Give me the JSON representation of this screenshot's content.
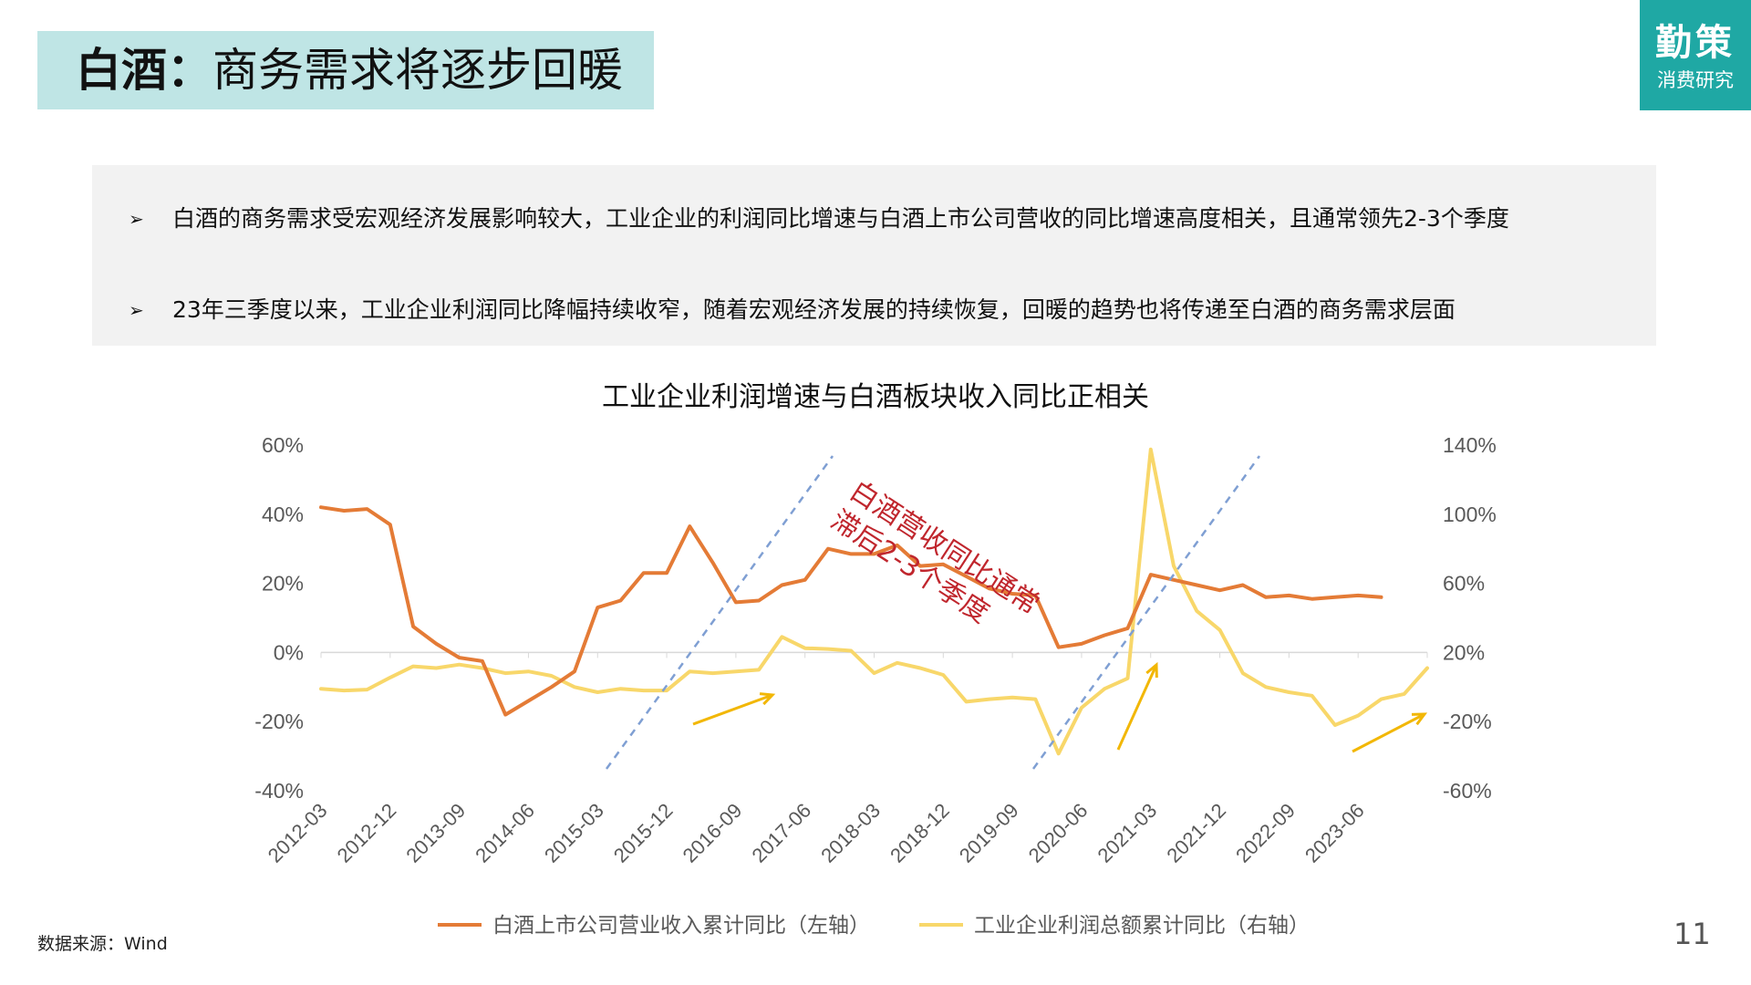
{
  "header": {
    "title_bold": "白酒：",
    "title_rest": "商务需求将逐步回暖"
  },
  "logo": {
    "line1": "勤策",
    "line2": "消费研究",
    "color": "#1fa8a4"
  },
  "summary": {
    "bullet_marker": "➢",
    "bullets": [
      "白酒的商务需求受宏观经济发展影响较大，工业企业的利润同比增速与白酒上市公司营收的同比增速高度相关，且通常领先2-3个季度",
      "23年三季度以来，工业企业利润同比降幅持续收窄，随着宏观经济发展的持续恢复，回暖的趋势也将传递至白酒的商务需求层面"
    ]
  },
  "chart_data": {
    "type": "line",
    "title": "工业企业利润增速与白酒板块收入同比正相关",
    "x": [
      "2012-03",
      "2012-06",
      "2012-09",
      "2012-12",
      "2013-03",
      "2013-06",
      "2013-09",
      "2013-12",
      "2014-03",
      "2014-06",
      "2014-09",
      "2014-12",
      "2015-03",
      "2015-06",
      "2015-09",
      "2015-12",
      "2016-03",
      "2016-06",
      "2016-09",
      "2016-12",
      "2017-03",
      "2017-06",
      "2017-09",
      "2017-12",
      "2018-03",
      "2018-06",
      "2018-09",
      "2018-12",
      "2019-03",
      "2019-06",
      "2019-09",
      "2019-12",
      "2020-03",
      "2020-06",
      "2020-09",
      "2020-12",
      "2021-03",
      "2021-06",
      "2021-09",
      "2021-12",
      "2022-03",
      "2022-06",
      "2022-09",
      "2022-12",
      "2023-03",
      "2023-06",
      "2023-09",
      "2023-12",
      "2024-03"
    ],
    "x_tick_labels": [
      "2012-03",
      "2012-12",
      "2013-09",
      "2014-06",
      "2015-03",
      "2015-12",
      "2016-09",
      "2017-06",
      "2018-03",
      "2018-12",
      "2019-09",
      "2020-06",
      "2021-03",
      "2021-12",
      "2022-09",
      "2023-06"
    ],
    "y_left": {
      "ticks": [
        "60%",
        "40%",
        "20%",
        "0%",
        "-20%",
        "-40%"
      ],
      "range": [
        -40,
        60
      ]
    },
    "y_right": {
      "ticks": [
        "140%",
        "100%",
        "60%",
        "20%",
        "-20%",
        "-60%"
      ],
      "range": [
        -60,
        140
      ]
    },
    "grid": false,
    "legend_position": "bottom",
    "series": [
      {
        "name": "白酒上市公司营业收入累计同比（左轴）",
        "axis": "left",
        "color": "#e47b36",
        "values": [
          42,
          41,
          41.5,
          37,
          7.5,
          2.5,
          -1.5,
          -2.5,
          -18,
          -14,
          -10,
          -5.5,
          13,
          15,
          23,
          23,
          36.5,
          26,
          14.5,
          15,
          19.5,
          21,
          30,
          28.5,
          28.5,
          31,
          25,
          25.5,
          22,
          18.5,
          17,
          16.5,
          1.5,
          2.5,
          5,
          7,
          22.5,
          21,
          19.5,
          18,
          19.5,
          16,
          16.5,
          15.5,
          16,
          16.5,
          16,
          null,
          null
        ]
      },
      {
        "name": "工业企业利润总额累计同比（右轴）",
        "axis": "right",
        "color": "#f8d76a",
        "values": [
          -1,
          -2,
          -1.5,
          5.5,
          12,
          11,
          13,
          11,
          8,
          9,
          6.5,
          0,
          -3,
          -1,
          -2,
          -2,
          9,
          8,
          9,
          10,
          29,
          22.5,
          22,
          21,
          8,
          14,
          11,
          7,
          -8.5,
          -7,
          -6,
          -7,
          -38.5,
          -12,
          -1,
          5,
          137.5,
          70,
          44,
          33,
          8,
          0,
          -3,
          -5,
          -22,
          -16.5,
          -7,
          -4,
          11
        ]
      }
    ],
    "annotation": {
      "lines": [
        "白酒营收同比通常",
        "滞后2-3个季度"
      ],
      "color": "#c0262d"
    }
  },
  "footer": {
    "source": "数据来源：Wind",
    "page": "11"
  }
}
